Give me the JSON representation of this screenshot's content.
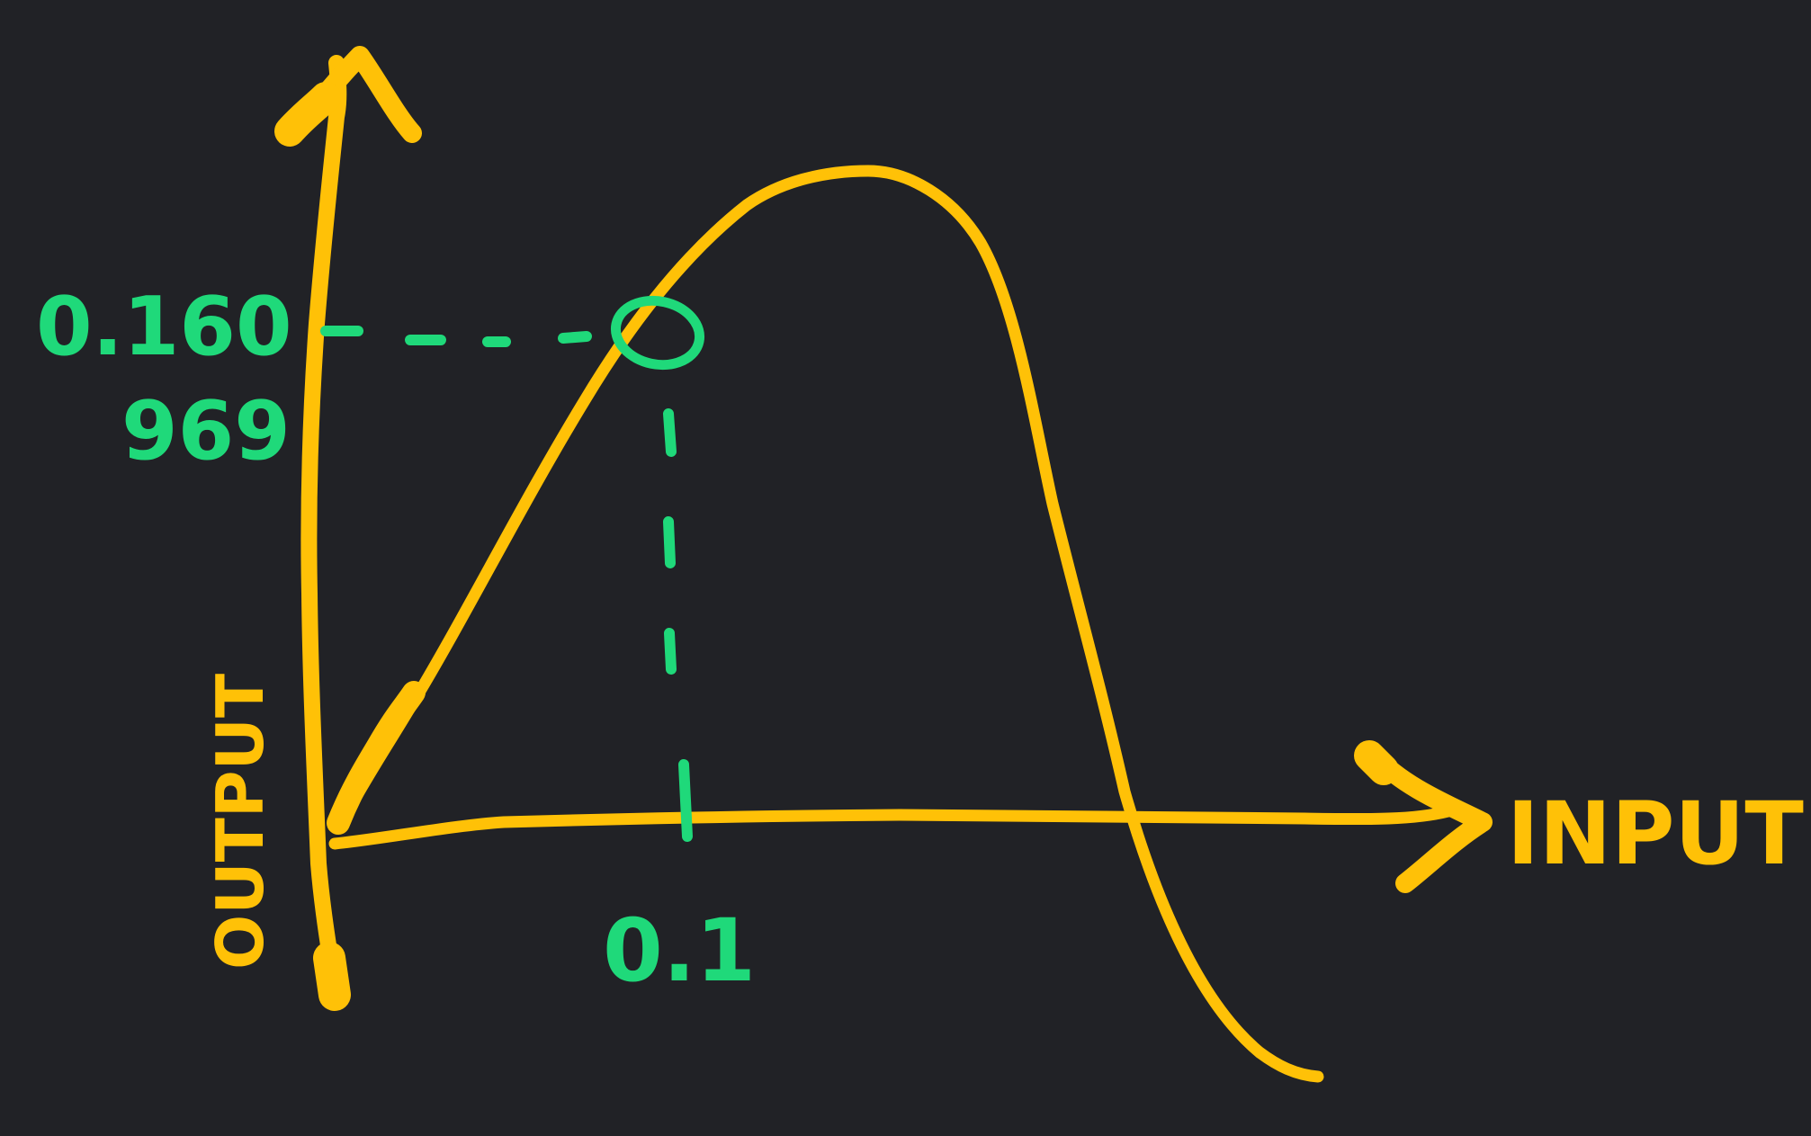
{
  "colors": {
    "background": "#212226",
    "axis": "#FFC107",
    "curve": "#FFC107",
    "annotation": "#1FD97A"
  },
  "labels": {
    "y_axis": "OUTPUT",
    "x_axis": "INPUT",
    "y_value_line1": "0.160",
    "y_value_line2": "969",
    "x_value": "0.1"
  }
}
